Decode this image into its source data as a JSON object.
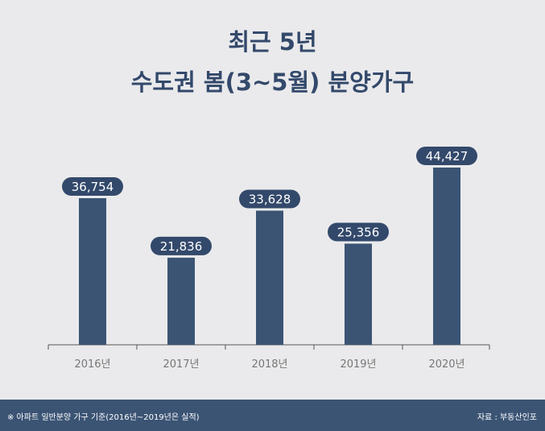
{
  "title_lines": [
    "최근 5년",
    "수도권 봄(3~5월) 분양가구"
  ],
  "footer": {
    "note": "※ 아파트 일반분양 가구 기준(2016년~2019년은 실적)",
    "source": "자료 : 부동산인포"
  },
  "colors": {
    "bar": "#3b5474",
    "label_bg": "#33496b",
    "label_text": "#ffffff",
    "axis": "#555555",
    "tick_text": "#777777",
    "background": "#eaeaec"
  },
  "chart_data": {
    "type": "bar",
    "categories": [
      "2016년",
      "2017년",
      "2018년",
      "2019년",
      "2020년"
    ],
    "values": [
      36754,
      21836,
      33628,
      25356,
      44427
    ],
    "value_labels": [
      "36,754",
      "21,836",
      "33,628",
      "25,356",
      "44,427"
    ],
    "ylim": [
      0,
      50000
    ],
    "grid": false,
    "legend": "none"
  }
}
